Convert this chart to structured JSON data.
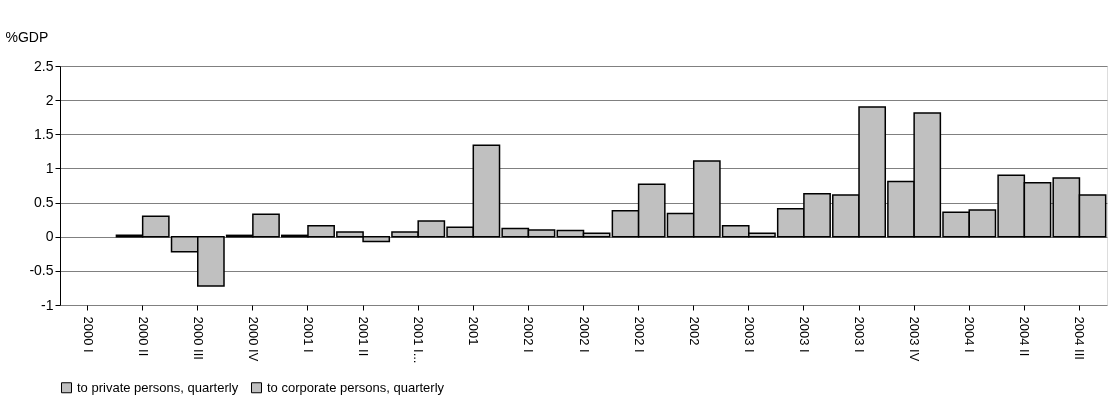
{
  "chart_data": {
    "type": "bar",
    "ylabel": "%GDP",
    "categories": [
      "2000 I",
      "2000 II",
      "2000 III",
      "2000 IV",
      "2001 I",
      "2001 II",
      "2001 I...",
      "2001",
      "2002 I",
      "2002 I",
      "2002 I",
      "2002",
      "2003 I",
      "2003 I",
      "2003 I",
      "2003 IV",
      "2004 I",
      "2004 II",
      "2004 III"
    ],
    "series": [
      {
        "name": "to private persons, quarterly",
        "color": "#c0c0c0",
        "values": [
          null,
          0.02,
          -0.22,
          0.02,
          0.02,
          0.07,
          0.07,
          0.14,
          0.12,
          0.09,
          0.38,
          0.34,
          0.16,
          0.41,
          0.61,
          0.81,
          0.36,
          0.9,
          0.86
        ]
      },
      {
        "name": "to corporate persons, quarterly",
        "color": "#c0c0c0",
        "values": [
          null,
          0.3,
          -0.72,
          0.33,
          0.16,
          -0.07,
          0.23,
          1.34,
          0.1,
          0.05,
          0.77,
          1.11,
          0.05,
          0.63,
          1.9,
          1.81,
          0.39,
          0.79,
          0.61
        ]
      }
    ],
    "ylim": [
      -1,
      2.5
    ],
    "yticks": [
      -1,
      -0.5,
      0,
      0.5,
      1,
      1.5,
      2,
      2.5
    ],
    "grid": "y",
    "legend": "bottom"
  }
}
